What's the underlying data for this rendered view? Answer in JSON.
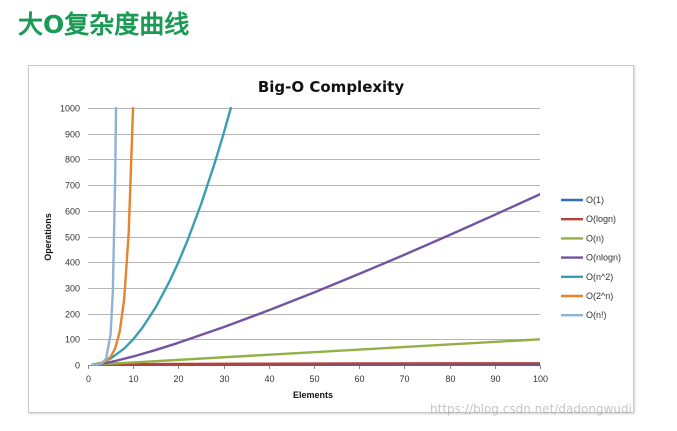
{
  "page": {
    "heading": "大O复杂度曲线"
  },
  "watermark": "https://blog.csdn.net/dadongwudi",
  "chart_data": {
    "type": "line",
    "title": "Big-O Complexity",
    "xlabel": "Elements",
    "ylabel": "Operations",
    "xlim": [
      0,
      100
    ],
    "ylim": [
      0,
      1000
    ],
    "x_ticks": [
      0,
      10,
      20,
      30,
      40,
      50,
      60,
      70,
      80,
      90,
      100
    ],
    "y_ticks": [
      0,
      100,
      200,
      300,
      400,
      500,
      600,
      700,
      800,
      900,
      1000
    ],
    "grid": "horizontal",
    "legend_position": "right",
    "series": [
      {
        "name": "O(1)",
        "color": "#2e6fb5",
        "points": [
          [
            1,
            1
          ],
          [
            100,
            1
          ]
        ]
      },
      {
        "name": "O(logn)",
        "color": "#b8403c",
        "points": [
          [
            1,
            0
          ],
          [
            10,
            3.3
          ],
          [
            20,
            4.3
          ],
          [
            40,
            5.3
          ],
          [
            60,
            5.9
          ],
          [
            80,
            6.3
          ],
          [
            100,
            6.6
          ]
        ]
      },
      {
        "name": "O(n)",
        "color": "#92b045",
        "points": [
          [
            1,
            1
          ],
          [
            100,
            100
          ]
        ]
      },
      {
        "name": "O(nlogn)",
        "color": "#7254a0",
        "points": [
          [
            1,
            0
          ],
          [
            2,
            2
          ],
          [
            4,
            8
          ],
          [
            6,
            15.5
          ],
          [
            10,
            33.2
          ],
          [
            15,
            58.6
          ],
          [
            20,
            86.4
          ],
          [
            30,
            147.2
          ],
          [
            40,
            212.9
          ],
          [
            50,
            282.2
          ],
          [
            60,
            354.4
          ],
          [
            70,
            429
          ],
          [
            80,
            505.8
          ],
          [
            90,
            584.3
          ],
          [
            100,
            664.4
          ]
        ]
      },
      {
        "name": "O(n^2)",
        "color": "#3a9eb3",
        "points": [
          [
            1,
            1
          ],
          [
            3,
            9
          ],
          [
            5,
            25
          ],
          [
            8,
            64
          ],
          [
            10,
            100
          ],
          [
            12,
            144
          ],
          [
            15,
            225
          ],
          [
            18,
            324
          ],
          [
            20,
            400
          ],
          [
            22,
            484
          ],
          [
            25,
            625
          ],
          [
            28,
            784
          ],
          [
            30,
            900
          ],
          [
            31.6,
            1000
          ]
        ]
      },
      {
        "name": "O(2^n)",
        "color": "#e3842f",
        "points": [
          [
            1,
            2
          ],
          [
            2,
            4
          ],
          [
            3,
            8
          ],
          [
            4,
            16
          ],
          [
            5,
            32
          ],
          [
            6,
            64
          ],
          [
            7,
            128
          ],
          [
            8,
            256
          ],
          [
            9,
            512
          ],
          [
            9.97,
            1000
          ]
        ]
      },
      {
        "name": "O(n!)",
        "color": "#8fb2d6",
        "points": [
          [
            1,
            1
          ],
          [
            2,
            2
          ],
          [
            3,
            6
          ],
          [
            4,
            24
          ],
          [
            5,
            120
          ],
          [
            5.5,
            287
          ],
          [
            6,
            720
          ],
          [
            6.2,
            1000
          ]
        ]
      }
    ]
  }
}
